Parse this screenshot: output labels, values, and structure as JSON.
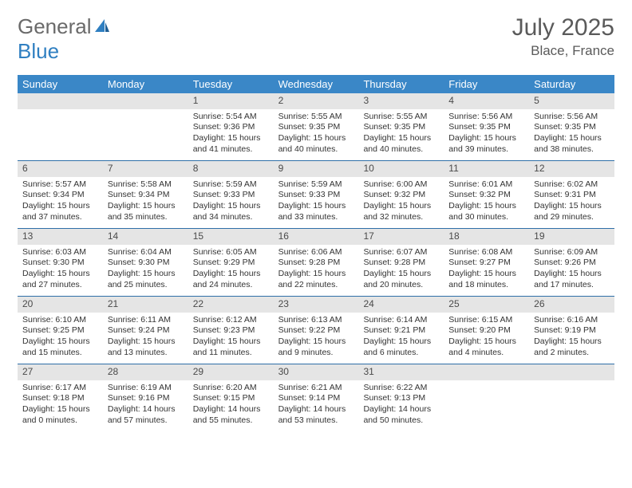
{
  "brand": {
    "part1": "General",
    "part2": "Blue"
  },
  "title": "July 2025",
  "location": "Blace, France",
  "colors": {
    "header_bg": "#3a87c7",
    "header_text": "#ffffff",
    "daynum_bg": "#e5e5e5",
    "week_border": "#2f6fa8",
    "body_text": "#333333",
    "title_text": "#5a5a5a",
    "logo_gray": "#6a6a6a",
    "logo_blue": "#2f7fc1"
  },
  "day_names": [
    "Sunday",
    "Monday",
    "Tuesday",
    "Wednesday",
    "Thursday",
    "Friday",
    "Saturday"
  ],
  "weeks": [
    [
      {
        "num": "",
        "empty": true
      },
      {
        "num": "",
        "empty": true
      },
      {
        "num": "1",
        "sunrise": "Sunrise: 5:54 AM",
        "sunset": "Sunset: 9:36 PM",
        "day1": "Daylight: 15 hours",
        "day2": "and 41 minutes."
      },
      {
        "num": "2",
        "sunrise": "Sunrise: 5:55 AM",
        "sunset": "Sunset: 9:35 PM",
        "day1": "Daylight: 15 hours",
        "day2": "and 40 minutes."
      },
      {
        "num": "3",
        "sunrise": "Sunrise: 5:55 AM",
        "sunset": "Sunset: 9:35 PM",
        "day1": "Daylight: 15 hours",
        "day2": "and 40 minutes."
      },
      {
        "num": "4",
        "sunrise": "Sunrise: 5:56 AM",
        "sunset": "Sunset: 9:35 PM",
        "day1": "Daylight: 15 hours",
        "day2": "and 39 minutes."
      },
      {
        "num": "5",
        "sunrise": "Sunrise: 5:56 AM",
        "sunset": "Sunset: 9:35 PM",
        "day1": "Daylight: 15 hours",
        "day2": "and 38 minutes."
      }
    ],
    [
      {
        "num": "6",
        "sunrise": "Sunrise: 5:57 AM",
        "sunset": "Sunset: 9:34 PM",
        "day1": "Daylight: 15 hours",
        "day2": "and 37 minutes."
      },
      {
        "num": "7",
        "sunrise": "Sunrise: 5:58 AM",
        "sunset": "Sunset: 9:34 PM",
        "day1": "Daylight: 15 hours",
        "day2": "and 35 minutes."
      },
      {
        "num": "8",
        "sunrise": "Sunrise: 5:59 AM",
        "sunset": "Sunset: 9:33 PM",
        "day1": "Daylight: 15 hours",
        "day2": "and 34 minutes."
      },
      {
        "num": "9",
        "sunrise": "Sunrise: 5:59 AM",
        "sunset": "Sunset: 9:33 PM",
        "day1": "Daylight: 15 hours",
        "day2": "and 33 minutes."
      },
      {
        "num": "10",
        "sunrise": "Sunrise: 6:00 AM",
        "sunset": "Sunset: 9:32 PM",
        "day1": "Daylight: 15 hours",
        "day2": "and 32 minutes."
      },
      {
        "num": "11",
        "sunrise": "Sunrise: 6:01 AM",
        "sunset": "Sunset: 9:32 PM",
        "day1": "Daylight: 15 hours",
        "day2": "and 30 minutes."
      },
      {
        "num": "12",
        "sunrise": "Sunrise: 6:02 AM",
        "sunset": "Sunset: 9:31 PM",
        "day1": "Daylight: 15 hours",
        "day2": "and 29 minutes."
      }
    ],
    [
      {
        "num": "13",
        "sunrise": "Sunrise: 6:03 AM",
        "sunset": "Sunset: 9:30 PM",
        "day1": "Daylight: 15 hours",
        "day2": "and 27 minutes."
      },
      {
        "num": "14",
        "sunrise": "Sunrise: 6:04 AM",
        "sunset": "Sunset: 9:30 PM",
        "day1": "Daylight: 15 hours",
        "day2": "and 25 minutes."
      },
      {
        "num": "15",
        "sunrise": "Sunrise: 6:05 AM",
        "sunset": "Sunset: 9:29 PM",
        "day1": "Daylight: 15 hours",
        "day2": "and 24 minutes."
      },
      {
        "num": "16",
        "sunrise": "Sunrise: 6:06 AM",
        "sunset": "Sunset: 9:28 PM",
        "day1": "Daylight: 15 hours",
        "day2": "and 22 minutes."
      },
      {
        "num": "17",
        "sunrise": "Sunrise: 6:07 AM",
        "sunset": "Sunset: 9:28 PM",
        "day1": "Daylight: 15 hours",
        "day2": "and 20 minutes."
      },
      {
        "num": "18",
        "sunrise": "Sunrise: 6:08 AM",
        "sunset": "Sunset: 9:27 PM",
        "day1": "Daylight: 15 hours",
        "day2": "and 18 minutes."
      },
      {
        "num": "19",
        "sunrise": "Sunrise: 6:09 AM",
        "sunset": "Sunset: 9:26 PM",
        "day1": "Daylight: 15 hours",
        "day2": "and 17 minutes."
      }
    ],
    [
      {
        "num": "20",
        "sunrise": "Sunrise: 6:10 AM",
        "sunset": "Sunset: 9:25 PM",
        "day1": "Daylight: 15 hours",
        "day2": "and 15 minutes."
      },
      {
        "num": "21",
        "sunrise": "Sunrise: 6:11 AM",
        "sunset": "Sunset: 9:24 PM",
        "day1": "Daylight: 15 hours",
        "day2": "and 13 minutes."
      },
      {
        "num": "22",
        "sunrise": "Sunrise: 6:12 AM",
        "sunset": "Sunset: 9:23 PM",
        "day1": "Daylight: 15 hours",
        "day2": "and 11 minutes."
      },
      {
        "num": "23",
        "sunrise": "Sunrise: 6:13 AM",
        "sunset": "Sunset: 9:22 PM",
        "day1": "Daylight: 15 hours",
        "day2": "and 9 minutes."
      },
      {
        "num": "24",
        "sunrise": "Sunrise: 6:14 AM",
        "sunset": "Sunset: 9:21 PM",
        "day1": "Daylight: 15 hours",
        "day2": "and 6 minutes."
      },
      {
        "num": "25",
        "sunrise": "Sunrise: 6:15 AM",
        "sunset": "Sunset: 9:20 PM",
        "day1": "Daylight: 15 hours",
        "day2": "and 4 minutes."
      },
      {
        "num": "26",
        "sunrise": "Sunrise: 6:16 AM",
        "sunset": "Sunset: 9:19 PM",
        "day1": "Daylight: 15 hours",
        "day2": "and 2 minutes."
      }
    ],
    [
      {
        "num": "27",
        "sunrise": "Sunrise: 6:17 AM",
        "sunset": "Sunset: 9:18 PM",
        "day1": "Daylight: 15 hours",
        "day2": "and 0 minutes."
      },
      {
        "num": "28",
        "sunrise": "Sunrise: 6:19 AM",
        "sunset": "Sunset: 9:16 PM",
        "day1": "Daylight: 14 hours",
        "day2": "and 57 minutes."
      },
      {
        "num": "29",
        "sunrise": "Sunrise: 6:20 AM",
        "sunset": "Sunset: 9:15 PM",
        "day1": "Daylight: 14 hours",
        "day2": "and 55 minutes."
      },
      {
        "num": "30",
        "sunrise": "Sunrise: 6:21 AM",
        "sunset": "Sunset: 9:14 PM",
        "day1": "Daylight: 14 hours",
        "day2": "and 53 minutes."
      },
      {
        "num": "31",
        "sunrise": "Sunrise: 6:22 AM",
        "sunset": "Sunset: 9:13 PM",
        "day1": "Daylight: 14 hours",
        "day2": "and 50 minutes."
      },
      {
        "num": "",
        "empty": true
      },
      {
        "num": "",
        "empty": true
      }
    ]
  ]
}
